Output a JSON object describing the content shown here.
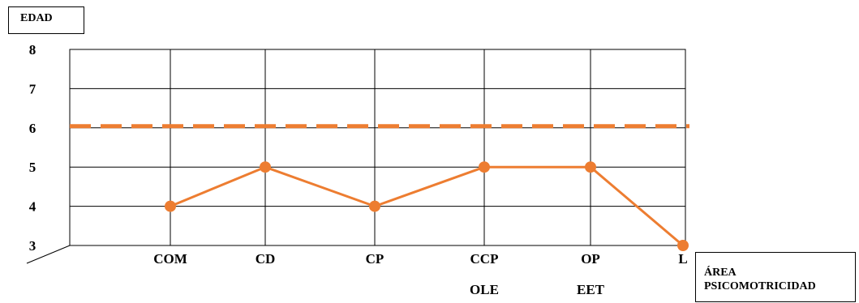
{
  "chart_data": {
    "type": "line",
    "ylabel": "EDAD",
    "xlabel": [
      "ÁREA",
      "PSICOMOTRICIDAD"
    ],
    "categories": [
      "COM",
      "CD",
      "CP",
      "CCP",
      "OP",
      "L"
    ],
    "secondary_labels": [
      "OLE",
      "EET"
    ],
    "y_ticks": [
      3,
      4,
      5,
      6,
      7,
      8
    ],
    "ylim": [
      3,
      8
    ],
    "grid": true,
    "series": [
      {
        "values": [
          4,
          5,
          4,
          5,
          5,
          3
        ],
        "color": "#ED7D31"
      }
    ],
    "reference_line": {
      "value": 6,
      "color": "#ED7D31",
      "style": "dashed"
    }
  }
}
